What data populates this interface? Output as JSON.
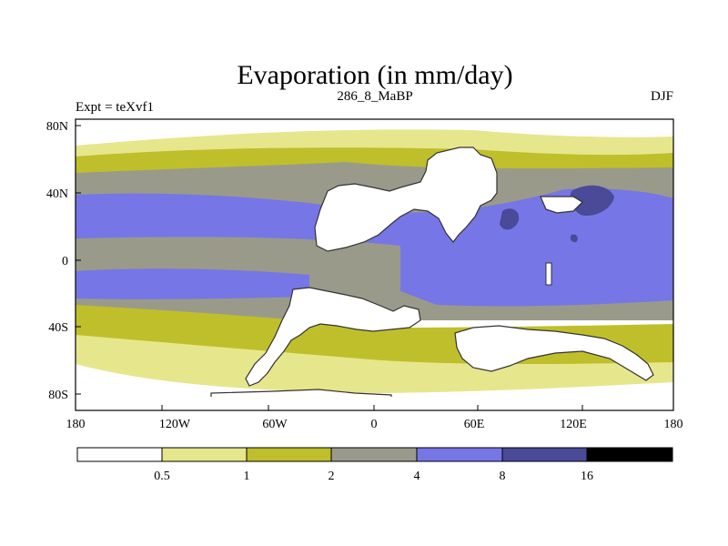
{
  "title": "Evaporation (in mm/day)",
  "left_label": "Expt = teXvf1",
  "center_label": "286_8_MaBP",
  "right_label": "DJF",
  "y_ticks": [
    "80N",
    "40N",
    "0",
    "40S",
    "80S"
  ],
  "x_ticks": [
    "180",
    "120W",
    "60W",
    "0",
    "60E",
    "120E",
    "180"
  ],
  "colorbar": {
    "labels": [
      "0.5",
      "1",
      "2",
      "4",
      "8",
      "16"
    ],
    "colors": [
      "#ffffff",
      "#e6e68c",
      "#bfbf2b",
      "#9a9a8a",
      "#7676e6",
      "#4a4a99",
      "#000000"
    ]
  },
  "palette": {
    "land": "#ffffff",
    "lt_yellow": "#e6e68c",
    "olive": "#bfbf2b",
    "gray": "#9a9a8a",
    "blue": "#7676e6",
    "dk_blue": "#4a4a99"
  }
}
